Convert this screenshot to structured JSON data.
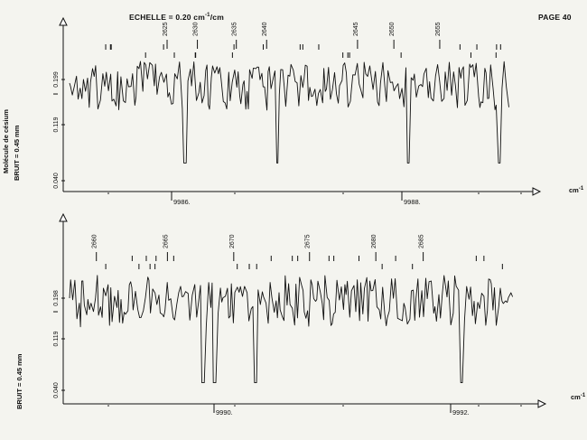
{
  "header": {
    "scale_label": "ECHELLE = 0.20 cm",
    "scale_exp": "-1",
    "scale_suffix": "/cm",
    "page_label": "PAGE 40"
  },
  "side_labels": {
    "molecule": "Molécule de césium",
    "noise_1": "BRUIT = 0.45 mm",
    "noise_2": "BRUIT = 0.45 mm"
  },
  "chart_data": [
    {
      "type": "line",
      "title": "",
      "xlabel": "cm-1",
      "ylabel": "",
      "y_ticks": [
        "0.040",
        "0.119",
        "0.199"
      ],
      "y_mark": "I",
      "x_ticks": [
        9986,
        9988
      ],
      "x_tick_labels": [
        "9986.",
        "9988."
      ],
      "xlim": [
        9984.5,
        9989.8
      ],
      "line_numbers": [
        2625,
        2630,
        2635,
        2640,
        2645,
        2650,
        2655
      ],
      "line_number_labels": [
        "2625",
        "2630",
        "2635",
        "2640",
        "2645",
        "2650",
        "2655"
      ],
      "line_number_x": [
        9985.7,
        9986.05,
        9986.5,
        9986.85,
        9987.9,
        9988.32,
        9988.85
      ]
    },
    {
      "type": "line",
      "title": "",
      "xlabel": "cm-1",
      "ylabel": "",
      "y_ticks": [
        "0.040",
        "0.119",
        "0.198"
      ],
      "y_mark": "I",
      "x_ticks": [
        9990,
        9992
      ],
      "x_tick_labels": [
        "9990.",
        "9992."
      ],
      "xlim": [
        9988.6,
        9993.5
      ],
      "line_numbers": [
        2660,
        2665,
        2670,
        2675,
        2680,
        2685
      ],
      "line_number_labels": [
        "2660",
        "2665",
        "2670",
        "2675",
        "2680",
        "2685"
      ],
      "line_number_x": [
        9988.95,
        9989.7,
        9990.4,
        9991.2,
        9991.9,
        9992.4
      ]
    }
  ]
}
